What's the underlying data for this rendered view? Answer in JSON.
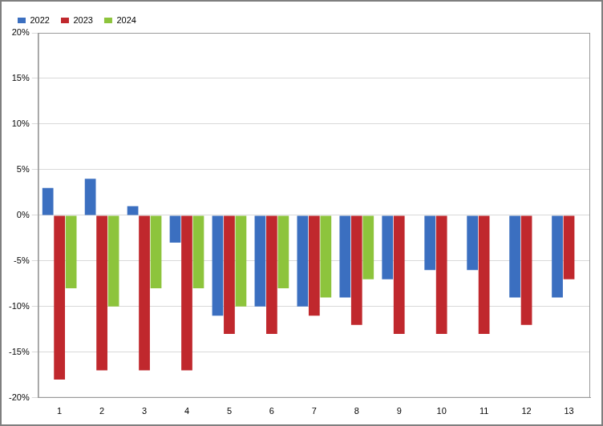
{
  "chart_data": {
    "type": "bar",
    "categories": [
      "1",
      "2",
      "3",
      "4",
      "5",
      "6",
      "7",
      "8",
      "9",
      "10",
      "11",
      "12",
      "13"
    ],
    "series": [
      {
        "name": "2022",
        "color": "#3b6fc0",
        "values": [
          3,
          4,
          1,
          -3,
          -11,
          -10,
          -10,
          -9,
          -7,
          -6,
          -6,
          -9,
          -9
        ]
      },
      {
        "name": "2023",
        "color": "#c0282d",
        "values": [
          -18,
          -17,
          -17,
          -17,
          -13,
          -13,
          -11,
          -12,
          -13,
          -13,
          -13,
          -12,
          -7
        ]
      },
      {
        "name": "2024",
        "color": "#8dc43c",
        "values": [
          -8,
          -10,
          -8,
          -8,
          -10,
          -8,
          -9,
          -7,
          null,
          null,
          null,
          null,
          null
        ]
      }
    ],
    "ylim": [
      -20,
      20
    ],
    "yticks": [
      {
        "value": -20,
        "label": "-20%"
      },
      {
        "value": -15,
        "label": "-15%"
      },
      {
        "value": -10,
        "label": "-10%"
      },
      {
        "value": -5,
        "label": "-5%"
      },
      {
        "value": 0,
        "label": "0%"
      },
      {
        "value": 5,
        "label": "5%"
      },
      {
        "value": 10,
        "label": "10%"
      },
      {
        "value": 15,
        "label": "15%"
      },
      {
        "value": 20,
        "label": "20%"
      }
    ],
    "grid": true,
    "legend": "top-left"
  }
}
